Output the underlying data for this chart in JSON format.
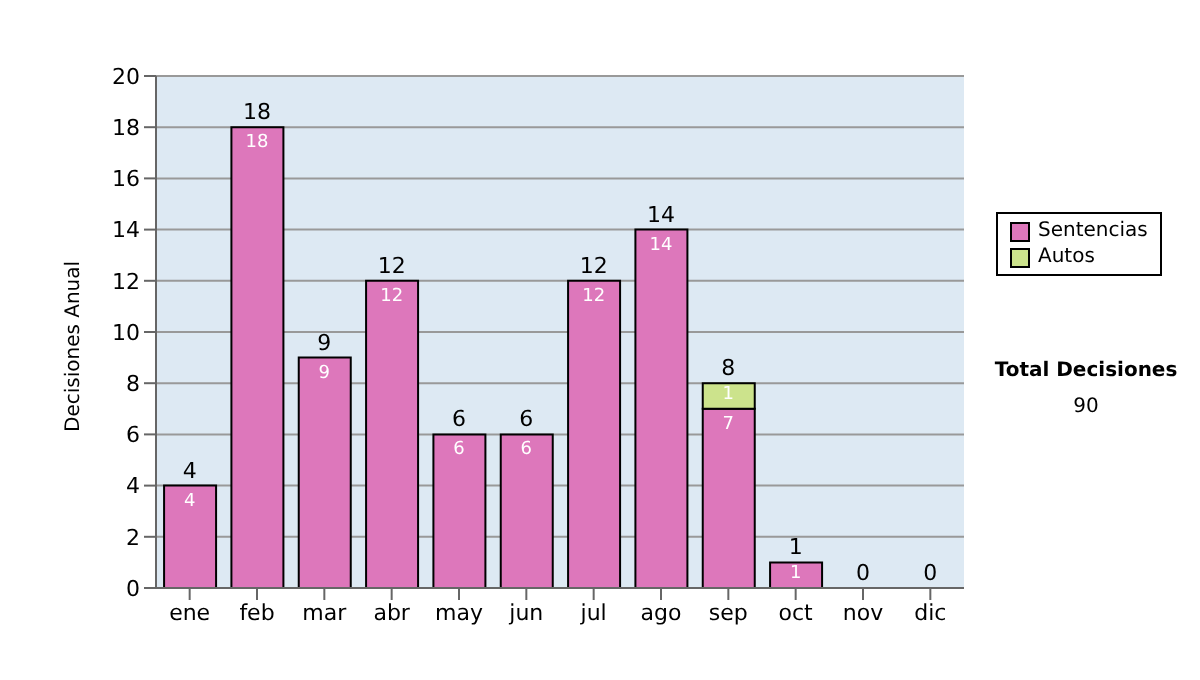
{
  "chart_data": {
    "type": "bar",
    "ylabel": "Decisiones Anual",
    "categories": [
      "ene",
      "feb",
      "mar",
      "abr",
      "may",
      "jun",
      "jul",
      "ago",
      "sep",
      "oct",
      "nov",
      "dic"
    ],
    "series": [
      {
        "name": "Sentencias",
        "color": "#dd77bb",
        "values": [
          4,
          18,
          9,
          12,
          6,
          6,
          12,
          14,
          7,
          1,
          0,
          0
        ],
        "value_labels": [
          "4",
          "18",
          "9",
          "12",
          "6",
          "6",
          "12",
          "14",
          "7",
          "1",
          null,
          null
        ]
      },
      {
        "name": "Autos",
        "color": "#cce38c",
        "values": [
          0,
          0,
          0,
          0,
          0,
          0,
          0,
          0,
          1,
          0,
          0,
          0
        ],
        "value_labels": [
          null,
          null,
          null,
          null,
          null,
          null,
          null,
          null,
          "1",
          null,
          null,
          null
        ]
      }
    ],
    "stacked": true,
    "totals": [
      "4",
      "18",
      "9",
      "12",
      "6",
      "6",
      "12",
      "14",
      "8",
      "1",
      "0",
      "0"
    ],
    "ylim": [
      0,
      20
    ],
    "yticks": [
      0,
      2,
      4,
      6,
      8,
      10,
      12,
      14,
      16,
      18,
      20
    ],
    "grid": "y",
    "legend": "right",
    "annotations": [
      "Total Decisiones",
      "90"
    ]
  }
}
